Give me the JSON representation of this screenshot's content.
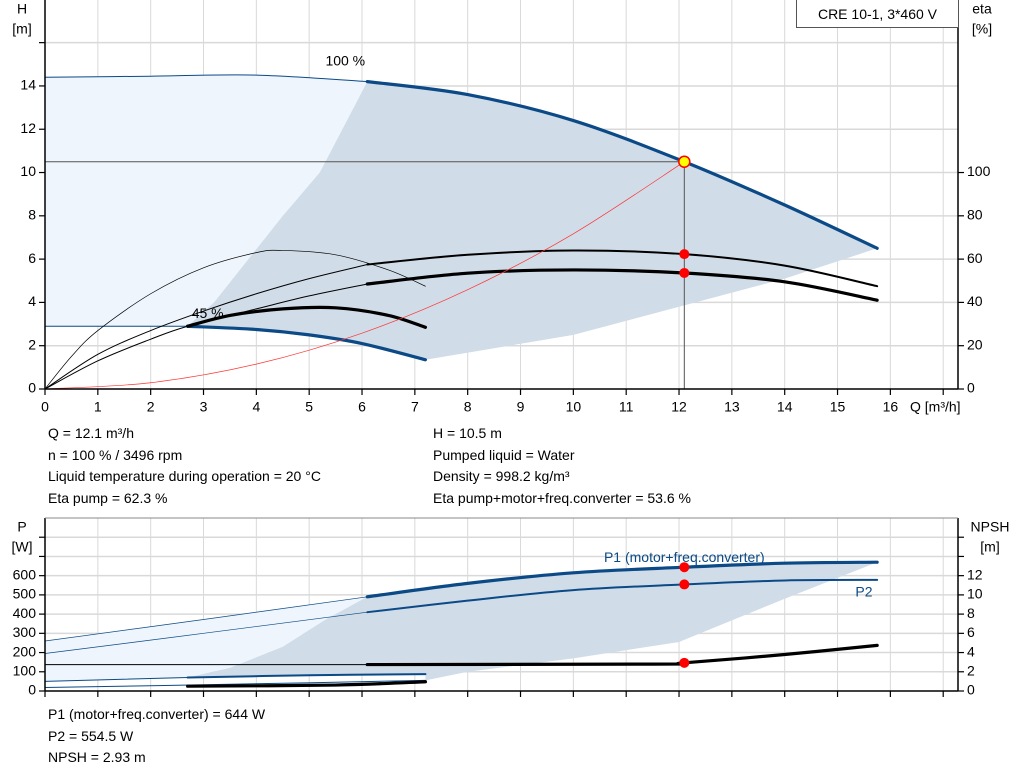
{
  "legend_box": "CRE 10-1, 3*460 V",
  "colors": {
    "pump_curve": "#0b4a86",
    "efficiency_curve": "#000000",
    "system_curve": "#ff3333",
    "region_dark": "#d0dce8",
    "region_light": "#eef5fd",
    "grid": "#d9d9d9",
    "duty_point": "#ff0000",
    "duty_point_head": "#ffff00"
  },
  "info_top": {
    "left": [
      "Q = 12.1 m³/h",
      "n = 100 % / 3496 rpm",
      "Liquid temperature during operation = 20 °C",
      "Eta pump = 62.3 %"
    ],
    "right": [
      "H = 10.5 m",
      "Pumped liquid = Water",
      "Density = 998.2 kg/m³",
      "Eta pump+motor+freq.converter = 53.6 %"
    ]
  },
  "info_bottom": [
    "P1 (motor+freq.converter) = 644 W",
    "P2 = 554.5 W",
    "NPSH = 2.93 m"
  ],
  "chart_data": [
    {
      "type": "line",
      "xlabel": "Q [m³/h]",
      "ylabel": [
        "H",
        "[m]"
      ],
      "y2label": [
        "eta",
        "[%]"
      ],
      "xlim": [
        0,
        17.28
      ],
      "ylim": [
        0,
        17.97
      ],
      "y2lim": [
        0,
        179.7
      ],
      "xticks": [
        0,
        1,
        2,
        3,
        4,
        5,
        6,
        7,
        8,
        9,
        10,
        11,
        12,
        13,
        14,
        15,
        16
      ],
      "yticks": [
        0,
        2,
        4,
        6,
        8,
        10,
        12,
        14
      ],
      "y2ticks": [
        0,
        20,
        40,
        60,
        80,
        100
      ],
      "grid": true,
      "annotations": [
        {
          "text": "100 %",
          "x": 6.1,
          "y": 14.2
        },
        {
          "text": "45 %",
          "x": 2.7,
          "y": 2.9
        }
      ],
      "regions": [
        {
          "shade": "light",
          "points": [
            [
              0,
              14.4
            ],
            [
              2,
              14.45
            ],
            [
              4,
              14.5
            ],
            [
              6.1,
              14.2
            ],
            [
              5.2,
              10
            ],
            [
              4.5,
              8
            ],
            [
              3.2,
              4
            ],
            [
              2.7,
              2.9
            ],
            [
              0,
              2.9
            ]
          ]
        },
        {
          "shade": "dark",
          "points": [
            [
              6.1,
              14.2
            ],
            [
              8,
              13.6
            ],
            [
              10,
              12.4
            ],
            [
              12.1,
              10.5
            ],
            [
              14,
              8.5
            ],
            [
              15.75,
              6.5
            ],
            [
              14,
              5.1
            ],
            [
              12,
              3.8
            ],
            [
              10,
              2.5
            ],
            [
              7.2,
              1.35
            ],
            [
              6,
              2.1
            ],
            [
              5,
              2.5
            ],
            [
              4,
              2.75
            ],
            [
              2.7,
              2.9
            ],
            [
              3.2,
              4
            ],
            [
              4.5,
              8
            ],
            [
              5.2,
              10
            ],
            [
              6.1,
              14.2
            ]
          ]
        }
      ],
      "series": [
        {
          "axis": "left",
          "kind": "pump",
          "weight": "thin",
          "points": [
            [
              0,
              14.4
            ],
            [
              2,
              14.45
            ],
            [
              4,
              14.5
            ],
            [
              6.1,
              14.2
            ]
          ]
        },
        {
          "axis": "left",
          "kind": "pump",
          "weight": "thick",
          "points": [
            [
              6.1,
              14.2
            ],
            [
              8,
              13.6
            ],
            [
              10,
              12.4
            ],
            [
              12.1,
              10.5
            ],
            [
              14,
              8.5
            ],
            [
              15.75,
              6.5
            ]
          ]
        },
        {
          "axis": "left",
          "kind": "pump",
          "weight": "thin",
          "points": [
            [
              0,
              2.9
            ],
            [
              2.7,
              2.9
            ]
          ]
        },
        {
          "axis": "left",
          "kind": "pump",
          "weight": "thick",
          "points": [
            [
              2.7,
              2.9
            ],
            [
              4,
              2.75
            ],
            [
              5,
              2.5
            ],
            [
              6,
              2.1
            ],
            [
              7.2,
              1.35
            ]
          ]
        },
        {
          "axis": "right",
          "kind": "eff",
          "weight": "thin",
          "points": [
            [
              0,
              0
            ],
            [
              1,
              16
            ],
            [
              2,
              27
            ],
            [
              3,
              36
            ],
            [
              4,
              44
            ],
            [
              5,
              51
            ],
            [
              6.1,
              57.5
            ]
          ]
        },
        {
          "axis": "right",
          "kind": "eff",
          "weight": "medium",
          "points": [
            [
              6.1,
              57.5
            ],
            [
              8,
              62
            ],
            [
              10,
              64
            ],
            [
              12.1,
              62.3
            ],
            [
              14,
              57
            ],
            [
              15.75,
              47.5
            ]
          ]
        },
        {
          "axis": "right",
          "kind": "eff",
          "weight": "thin",
          "points": [
            [
              0,
              0
            ],
            [
              1,
              13
            ],
            [
              2,
              23
            ],
            [
              2.7,
              29
            ],
            [
              4,
              37
            ],
            [
              5,
              43
            ],
            [
              6.1,
              48.5
            ]
          ]
        },
        {
          "axis": "right",
          "kind": "eff",
          "weight": "thick",
          "points": [
            [
              6.1,
              48.5
            ],
            [
              8,
              53.5
            ],
            [
              10,
              55
            ],
            [
              12.1,
              53.6
            ],
            [
              14,
              49.5
            ],
            [
              15.75,
              41
            ]
          ]
        },
        {
          "axis": "right",
          "kind": "eff",
          "weight": "hair",
          "points": [
            [
              0,
              0
            ],
            [
              0.5,
              15
            ],
            [
              1,
              27
            ],
            [
              2,
              44
            ],
            [
              3,
              56
            ],
            [
              4,
              63
            ],
            [
              4.5,
              64
            ],
            [
              5.5,
              62
            ],
            [
              6.5,
              55
            ],
            [
              7.2,
              47.5
            ]
          ]
        },
        {
          "axis": "right",
          "kind": "eff",
          "weight": "thick",
          "points": [
            [
              2.7,
              29
            ],
            [
              3.5,
              34
            ],
            [
              4.5,
              37
            ],
            [
              5.5,
              37.5
            ],
            [
              6.5,
              34
            ],
            [
              7.2,
              28.5
            ]
          ]
        },
        {
          "axis": "left",
          "kind": "system",
          "weight": "hair",
          "points": [
            [
              0,
              0
            ],
            [
              2,
              0.29
            ],
            [
              4,
              1.15
            ],
            [
              6,
              2.58
            ],
            [
              8,
              4.59
            ],
            [
              10,
              7.17
            ],
            [
              12.1,
              10.5
            ]
          ]
        }
      ],
      "duty_lines": {
        "q": 12.1,
        "h": 10.5
      },
      "markers": [
        {
          "axis": "left",
          "x": 12.1,
          "y": 10.5,
          "fill": "duty_point_head"
        },
        {
          "axis": "right",
          "x": 12.1,
          "y": 62.3,
          "fill": "duty_point"
        },
        {
          "axis": "right",
          "x": 12.1,
          "y": 53.6,
          "fill": "duty_point"
        }
      ]
    },
    {
      "type": "line",
      "ylabel": [
        "P",
        "[W]"
      ],
      "y2label": [
        "NPSH",
        "[m]"
      ],
      "xlim": [
        0,
        17.28
      ],
      "ylim": [
        0,
        900
      ],
      "y2lim": [
        0,
        18
      ],
      "xticks": [
        0,
        1,
        2,
        3,
        4,
        5,
        6,
        7,
        8,
        9,
        10,
        11,
        12,
        13,
        14,
        15,
        16
      ],
      "yticks": [
        0,
        100,
        200,
        300,
        400,
        500,
        600
      ],
      "ygrid_to": 800,
      "y2ticks": [
        0,
        2,
        4,
        6,
        8,
        10,
        12
      ],
      "y2ticks_unlabeled": [
        14,
        16
      ],
      "grid": true,
      "annotations": [
        {
          "text": "P1 (motor+freq.converter)",
          "x": 12.1,
          "y": 690,
          "color": "pump_curve"
        },
        {
          "text": "P2",
          "x": 15.5,
          "y": 510,
          "color": "pump_curve"
        }
      ],
      "regions": [
        {
          "shade": "light",
          "points": [
            [
              0,
              260
            ],
            [
              6.1,
              490
            ],
            [
              5.3,
              370
            ],
            [
              4.5,
              230
            ],
            [
              3.5,
              120
            ],
            [
              2.7,
              70
            ],
            [
              0,
              50
            ]
          ]
        },
        {
          "shade": "dark",
          "points": [
            [
              6.1,
              490
            ],
            [
              8,
              560
            ],
            [
              10,
              615
            ],
            [
              12.1,
              644
            ],
            [
              14,
              665
            ],
            [
              15.75,
              670
            ],
            [
              14,
              480
            ],
            [
              12,
              255
            ],
            [
              10,
              170
            ],
            [
              8,
              100
            ],
            [
              7.2,
              55
            ],
            [
              7.2,
              88
            ],
            [
              5,
              82
            ],
            [
              2.7,
              70
            ],
            [
              3.5,
              120
            ],
            [
              4.5,
              230
            ],
            [
              5.3,
              370
            ],
            [
              6.1,
              490
            ]
          ]
        }
      ],
      "series": [
        {
          "axis": "left",
          "kind": "pump",
          "weight": "hair",
          "points": [
            [
              0,
              260
            ],
            [
              3,
              372
            ],
            [
              6.1,
              490
            ]
          ]
        },
        {
          "axis": "left",
          "kind": "pump",
          "weight": "thick",
          "points": [
            [
              6.1,
              490
            ],
            [
              8,
              560
            ],
            [
              10,
              615
            ],
            [
              12.1,
              644
            ],
            [
              14,
              665
            ],
            [
              15.75,
              670
            ]
          ]
        },
        {
          "axis": "left",
          "kind": "pump",
          "weight": "hair",
          "points": [
            [
              0,
              195
            ],
            [
              3,
              300
            ],
            [
              6.1,
              410
            ]
          ]
        },
        {
          "axis": "left",
          "kind": "pump",
          "weight": "medium",
          "points": [
            [
              6.1,
              410
            ],
            [
              8,
              470
            ],
            [
              10,
              525
            ],
            [
              12.1,
              554.5
            ],
            [
              14,
              575
            ],
            [
              15.75,
              578
            ]
          ]
        },
        {
          "axis": "left",
          "kind": "pump",
          "weight": "thin",
          "points": [
            [
              0,
              50
            ],
            [
              2.7,
              70
            ]
          ]
        },
        {
          "axis": "left",
          "kind": "pump",
          "weight": "medium",
          "points": [
            [
              2.7,
              70
            ],
            [
              5,
              82
            ],
            [
              7.2,
              88
            ]
          ]
        },
        {
          "axis": "left",
          "kind": "pump",
          "weight": "thin",
          "points": [
            [
              0,
              18
            ],
            [
              3.5,
              35
            ],
            [
              7.2,
              55
            ]
          ]
        },
        {
          "axis": "right",
          "kind": "eff",
          "weight": "thick",
          "points": [
            [
              2.7,
              0.5
            ],
            [
              5.5,
              0.62
            ],
            [
              7.2,
              0.96
            ]
          ]
        },
        {
          "axis": "right",
          "kind": "eff",
          "weight": "thin",
          "points": [
            [
              0,
              2.75
            ],
            [
              6.1,
              2.75
            ]
          ]
        },
        {
          "axis": "right",
          "kind": "eff",
          "weight": "thick",
          "points": [
            [
              6.1,
              2.75
            ],
            [
              11.5,
              2.8
            ],
            [
              12.1,
              2.93
            ],
            [
              14,
              3.8
            ],
            [
              15.75,
              4.75
            ]
          ]
        }
      ],
      "markers": [
        {
          "axis": "left",
          "x": 12.1,
          "y": 644,
          "fill": "duty_point"
        },
        {
          "axis": "left",
          "x": 12.1,
          "y": 554.5,
          "fill": "duty_point"
        },
        {
          "axis": "right",
          "x": 12.1,
          "y": 2.93,
          "fill": "duty_point"
        }
      ]
    }
  ]
}
